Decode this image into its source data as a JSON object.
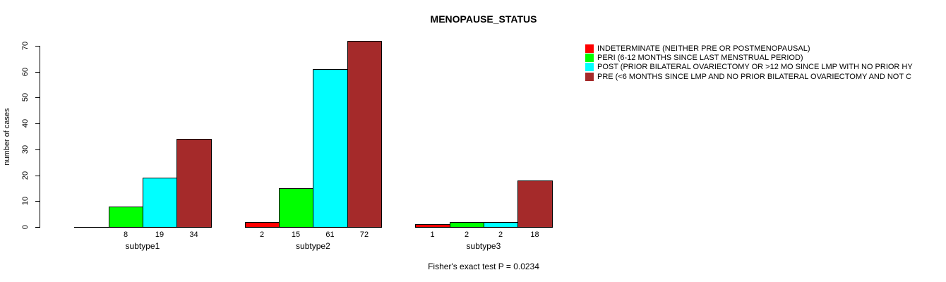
{
  "title": "MENOPAUSE_STATUS",
  "ylabel": "number of cases",
  "footer": "Fisher's exact test P = 0.0234",
  "colors": {
    "indeterminate": "#FF0000",
    "peri": "#00FF00",
    "post": "#00FFFF",
    "pre": "#A52A2A",
    "axis": "#000000",
    "background": "#FFFFFF"
  },
  "chart_data": {
    "type": "bar",
    "grouped": true,
    "title": "MENOPAUSE_STATUS",
    "xlabel": "",
    "ylabel": "number of cases",
    "categories": [
      "subtype1",
      "subtype2",
      "subtype3"
    ],
    "series": [
      {
        "name": "INDETERMINATE (NEITHER PRE OR POSTMENOPAUSAL)",
        "color": "#FF0000",
        "values": [
          0,
          2,
          1
        ]
      },
      {
        "name": "PERI (6-12 MONTHS SINCE LAST MENSTRUAL PERIOD)",
        "color": "#00FF00",
        "values": [
          8,
          15,
          2
        ]
      },
      {
        "name": "POST (PRIOR BILATERAL OVARIECTOMY OR >12 MO SINCE LMP WITH NO PRIOR HY",
        "color": "#00FFFF",
        "values": [
          19,
          61,
          2
        ]
      },
      {
        "name": "PRE (<6 MONTHS SINCE LMP AND NO PRIOR BILATERAL OVARIECTOMY AND NOT C",
        "color": "#A52A2A",
        "values": [
          34,
          72,
          18
        ]
      }
    ],
    "bar_value_labels": {
      "subtype1": [
        "",
        "8",
        "19",
        "34"
      ],
      "subtype2": [
        "2",
        "15",
        "61",
        "72"
      ],
      "subtype3": [
        "1",
        "2",
        "2",
        "18"
      ]
    },
    "ylim": [
      0,
      70
    ],
    "yticks": [
      0,
      10,
      20,
      30,
      40,
      50,
      60,
      70
    ],
    "grid": false,
    "legend_position": "top-right",
    "annotation": "Fisher's exact test P = 0.0234"
  }
}
